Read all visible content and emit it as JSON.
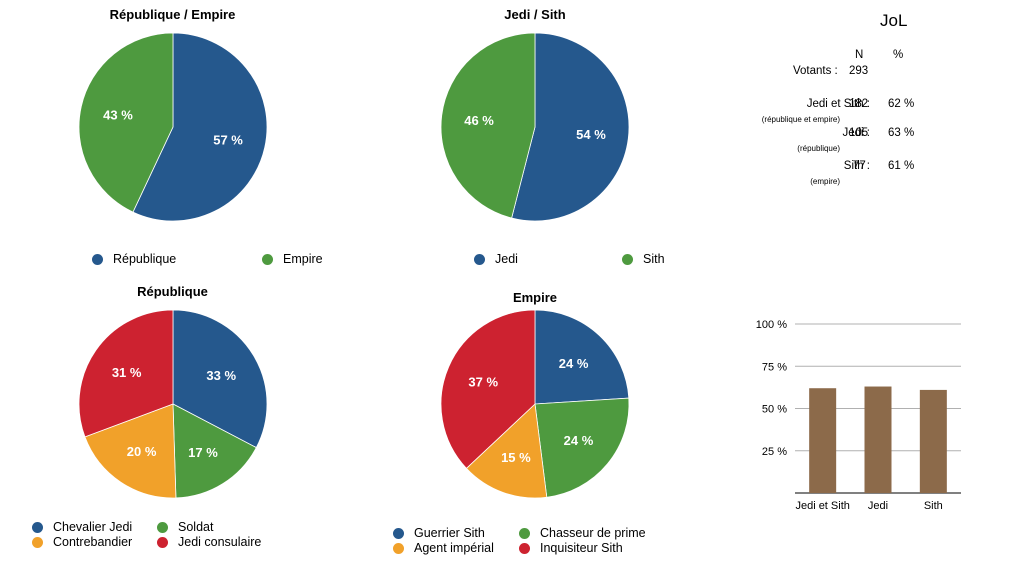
{
  "colors": {
    "blue": "#25588d",
    "green": "#4e9a3f",
    "orange": "#f1a12a",
    "red": "#cd2230",
    "bar": "#8c6a4a"
  },
  "chart_data": [
    {
      "type": "pie",
      "title": "République / Empire",
      "slices": [
        {
          "label": "République",
          "value": 57,
          "color": "#25588d",
          "text": "57 %"
        },
        {
          "label": "Empire",
          "value": 43,
          "color": "#4e9a3f",
          "text": "43 %"
        }
      ],
      "legend_position": "bottom"
    },
    {
      "type": "pie",
      "title": "Jedi / Sith",
      "slices": [
        {
          "label": "Jedi",
          "value": 54,
          "color": "#25588d",
          "text": "54 %"
        },
        {
          "label": "Sith",
          "value": 46,
          "color": "#4e9a3f",
          "text": "46 %"
        }
      ],
      "legend_position": "bottom"
    },
    {
      "type": "pie",
      "title": "République",
      "slices": [
        {
          "label": "Chevalier Jedi",
          "value": 33,
          "color": "#25588d",
          "text": "33 %"
        },
        {
          "label": "Soldat",
          "value": 17,
          "color": "#4e9a3f",
          "text": "17 %"
        },
        {
          "label": "Contrebandier",
          "value": 20,
          "color": "#f1a12a",
          "text": "20 %"
        },
        {
          "label": "Jedi consulaire",
          "value": 31,
          "color": "#cd2230",
          "text": "31 %"
        }
      ],
      "legend_position": "bottom"
    },
    {
      "type": "pie",
      "title": "Empire",
      "slices": [
        {
          "label": "Guerrier Sith",
          "value": 24,
          "color": "#25588d",
          "text": "24 %"
        },
        {
          "label": "Chasseur de prime",
          "value": 24,
          "color": "#4e9a3f",
          "text": "24 %"
        },
        {
          "label": "Agent impérial",
          "value": 15,
          "color": "#f1a12a",
          "text": "15 %"
        },
        {
          "label": "Inquisiteur Sith",
          "value": 37,
          "color": "#cd2230",
          "text": "37 %"
        }
      ],
      "legend_position": "bottom"
    },
    {
      "type": "bar",
      "title": "",
      "categories": [
        "Jedi et Sith",
        "Jedi",
        "Sith"
      ],
      "values": [
        62,
        63,
        61
      ],
      "ylim": [
        0,
        100
      ],
      "yticks": [
        "25 %",
        "50 %",
        "75 %",
        "100 %"
      ],
      "ytick_values": [
        25,
        50,
        75,
        100
      ],
      "grid": true,
      "color": "#8c6a4a"
    }
  ],
  "stats": {
    "title": "JoL",
    "col_n": "N",
    "col_pct": "%",
    "votants_label": "Votants :",
    "votants_n": "293",
    "rows": [
      {
        "label": "Jedi et Sith :",
        "sub": "(république et empire)",
        "n": "182",
        "pct": "62 %"
      },
      {
        "label": "Jedi :",
        "sub": "(république)",
        "n": "105",
        "pct": "63 %"
      },
      {
        "label": "Sith :",
        "sub": "(empire)",
        "n": "77",
        "pct": "61 %"
      }
    ]
  }
}
